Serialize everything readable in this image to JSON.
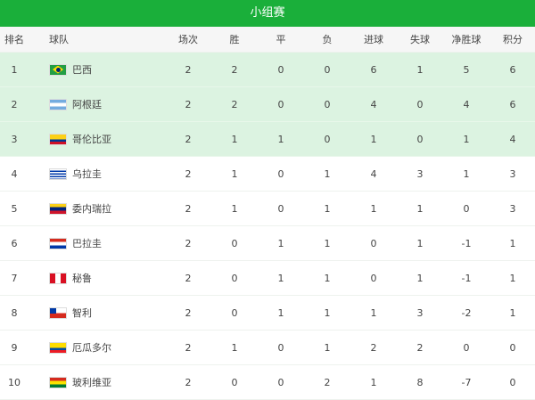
{
  "title": "小组赛",
  "headers": [
    "排名",
    "球队",
    "场次",
    "胜",
    "平",
    "负",
    "进球",
    "失球",
    "净胜球",
    "积分"
  ],
  "highlight_color": "#dcf3e1",
  "accent": "#1aaf3a",
  "rows": [
    {
      "rank": "1",
      "team": "巴西",
      "flag": "brazil-flag",
      "p": "2",
      "w": "2",
      "d": "0",
      "l": "0",
      "gf": "6",
      "ga": "1",
      "gd": "5",
      "pts": "6"
    },
    {
      "rank": "2",
      "team": "阿根廷",
      "flag": "argentina-flag",
      "p": "2",
      "w": "2",
      "d": "0",
      "l": "0",
      "gf": "4",
      "ga": "0",
      "gd": "4",
      "pts": "6"
    },
    {
      "rank": "3",
      "team": "哥伦比亚",
      "flag": "colombia-flag",
      "p": "2",
      "w": "1",
      "d": "1",
      "l": "0",
      "gf": "1",
      "ga": "0",
      "gd": "1",
      "pts": "4"
    },
    {
      "rank": "4",
      "team": "乌拉圭",
      "flag": "uruguay-flag",
      "p": "2",
      "w": "1",
      "d": "0",
      "l": "1",
      "gf": "4",
      "ga": "3",
      "gd": "1",
      "pts": "3"
    },
    {
      "rank": "5",
      "team": "委内瑞拉",
      "flag": "venezuela-flag",
      "p": "2",
      "w": "1",
      "d": "0",
      "l": "1",
      "gf": "1",
      "ga": "1",
      "gd": "0",
      "pts": "3"
    },
    {
      "rank": "6",
      "team": "巴拉圭",
      "flag": "paraguay-flag",
      "p": "2",
      "w": "0",
      "d": "1",
      "l": "1",
      "gf": "0",
      "ga": "1",
      "gd": "-1",
      "pts": "1"
    },
    {
      "rank": "7",
      "team": "秘鲁",
      "flag": "peru-flag",
      "p": "2",
      "w": "0",
      "d": "1",
      "l": "1",
      "gf": "0",
      "ga": "1",
      "gd": "-1",
      "pts": "1"
    },
    {
      "rank": "8",
      "team": "智利",
      "flag": "chile-flag",
      "p": "2",
      "w": "0",
      "d": "1",
      "l": "1",
      "gf": "1",
      "ga": "3",
      "gd": "-2",
      "pts": "1"
    },
    {
      "rank": "9",
      "team": "厄瓜多尔",
      "flag": "ecuador-flag",
      "p": "2",
      "w": "1",
      "d": "0",
      "l": "1",
      "gf": "2",
      "ga": "2",
      "gd": "0",
      "pts": "0"
    },
    {
      "rank": "10",
      "team": "玻利维亚",
      "flag": "bolivia-flag",
      "p": "2",
      "w": "0",
      "d": "0",
      "l": "2",
      "gf": "1",
      "ga": "8",
      "gd": "-7",
      "pts": "0"
    }
  ]
}
